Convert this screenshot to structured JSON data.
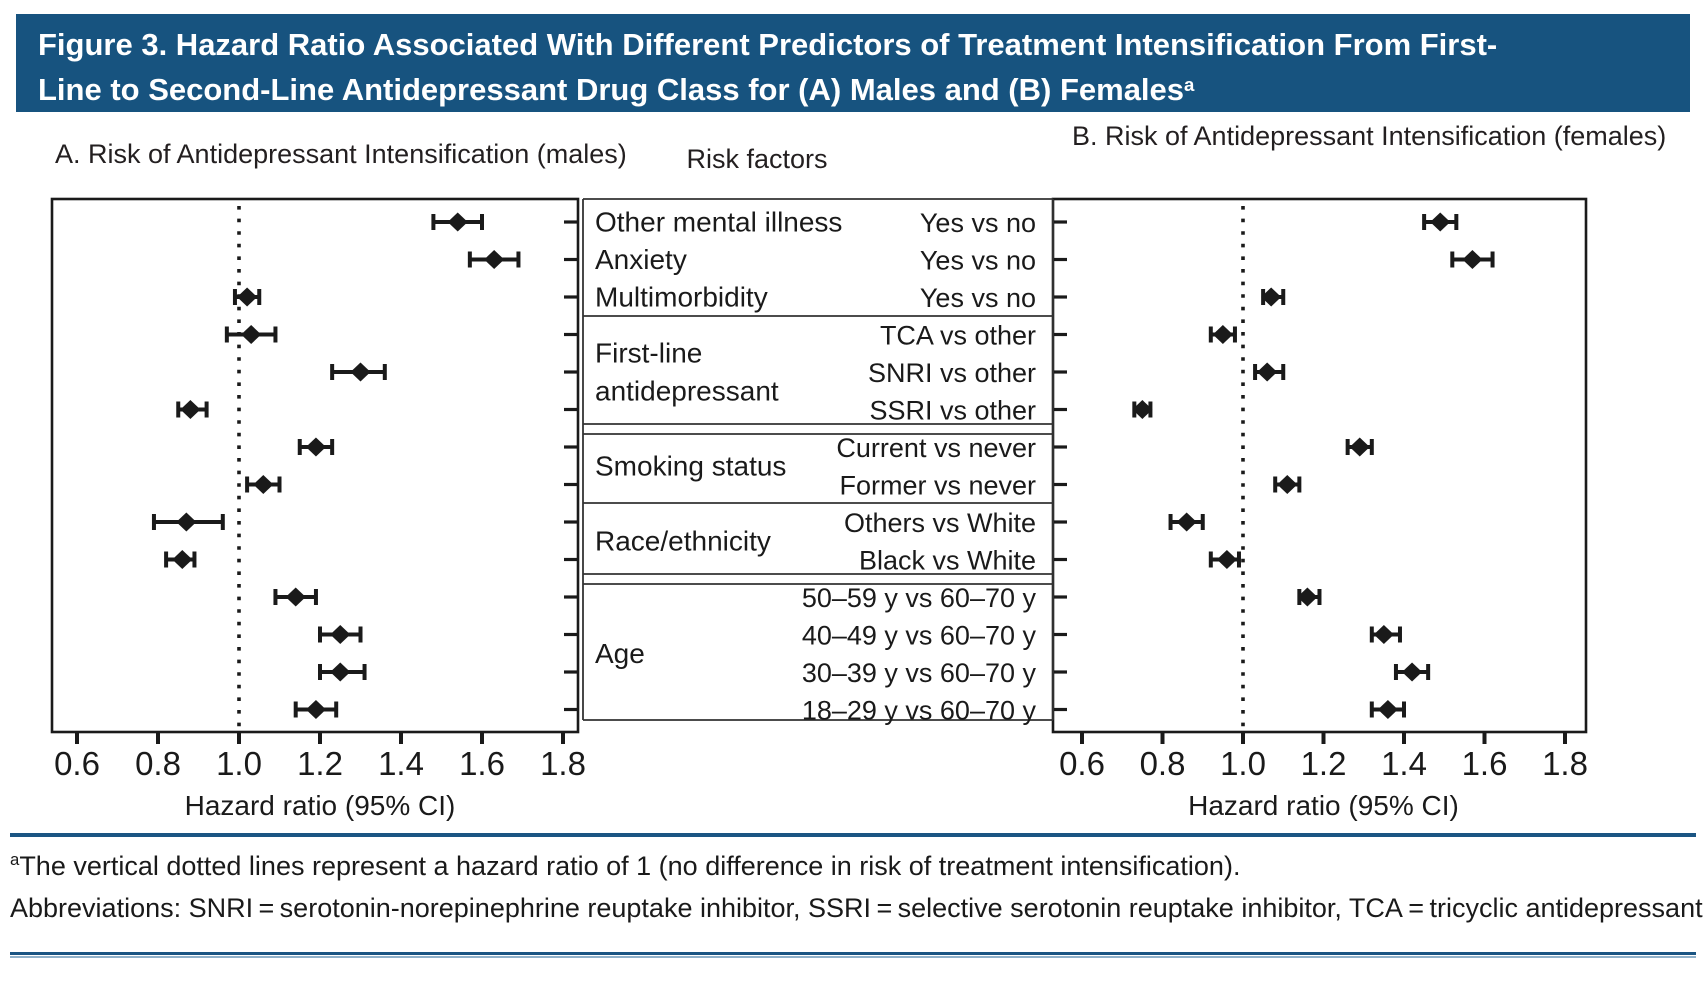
{
  "title": {
    "line1": "Figure 3. Hazard Ratio Associated With Different Predictors of Treatment Intensification From First-",
    "line2": "Line to Second-Line Antidepressant Drug Class for (A) Males and (B) Females",
    "superscript": "a"
  },
  "colors": {
    "title_bar": "#17537F",
    "rule_dark": "#1B5583",
    "rule_light": "#8FB0C9",
    "ink": "#1A1A1A"
  },
  "chart_data": {
    "type": "forest",
    "column_header": "Risk factors",
    "xlabel": "Hazard ratio (95% CI)",
    "x_ticks": [
      "0.6",
      "0.8",
      "1.0",
      "1.2",
      "1.4",
      "1.6",
      "1.8"
    ],
    "xlim": [
      0.54,
      1.84
    ],
    "reference_line": 1.0,
    "reference_note": "vertical dotted line = hazard ratio of 1",
    "panels": [
      {
        "id": "A",
        "title": "A. Risk of Antidepressant Intensification (males)",
        "series_key": "male"
      },
      {
        "id": "B",
        "title": "B. Risk of Antidepressant Intensification (females)",
        "series_key": "female"
      }
    ],
    "groups": [
      {
        "factor": "Other mental illness",
        "rows": [
          {
            "comparison": "Yes vs no",
            "male": {
              "hr": 1.54,
              "lo": 1.48,
              "hi": 1.6
            },
            "female": {
              "hr": 1.49,
              "lo": 1.45,
              "hi": 1.53
            }
          }
        ]
      },
      {
        "factor": "Anxiety",
        "rows": [
          {
            "comparison": "Yes vs no",
            "male": {
              "hr": 1.63,
              "lo": 1.57,
              "hi": 1.69
            },
            "female": {
              "hr": 1.57,
              "lo": 1.52,
              "hi": 1.62
            }
          }
        ]
      },
      {
        "factor": "Multimorbidity",
        "rows": [
          {
            "comparison": "Yes vs no",
            "male": {
              "hr": 1.02,
              "lo": 0.99,
              "hi": 1.05
            },
            "female": {
              "hr": 1.07,
              "lo": 1.05,
              "hi": 1.1
            }
          }
        ]
      },
      {
        "factor": "First-line antidepressant",
        "factor_lines": [
          "First-line",
          "antidepressant"
        ],
        "rows": [
          {
            "comparison": "TCA vs other",
            "male": {
              "hr": 1.03,
              "lo": 0.97,
              "hi": 1.09
            },
            "female": {
              "hr": 0.95,
              "lo": 0.92,
              "hi": 0.98
            }
          },
          {
            "comparison": "SNRI vs other",
            "male": {
              "hr": 1.3,
              "lo": 1.23,
              "hi": 1.36
            },
            "female": {
              "hr": 1.06,
              "lo": 1.03,
              "hi": 1.1
            }
          },
          {
            "comparison": "SSRI vs other",
            "male": {
              "hr": 0.88,
              "lo": 0.85,
              "hi": 0.92
            },
            "female": {
              "hr": 0.75,
              "lo": 0.73,
              "hi": 0.77
            }
          }
        ]
      },
      {
        "factor": "Smoking status",
        "rows": [
          {
            "comparison": "Current vs never",
            "male": {
              "hr": 1.19,
              "lo": 1.15,
              "hi": 1.23
            },
            "female": {
              "hr": 1.29,
              "lo": 1.26,
              "hi": 1.32
            }
          },
          {
            "comparison": "Former vs never",
            "male": {
              "hr": 1.06,
              "lo": 1.02,
              "hi": 1.1
            },
            "female": {
              "hr": 1.11,
              "lo": 1.08,
              "hi": 1.14
            }
          }
        ]
      },
      {
        "factor": "Race/ethnicity",
        "rows": [
          {
            "comparison": "Others vs White",
            "male": {
              "hr": 0.87,
              "lo": 0.79,
              "hi": 0.96
            },
            "female": {
              "hr": 0.86,
              "lo": 0.82,
              "hi": 0.9
            }
          },
          {
            "comparison": "Black vs White",
            "male": {
              "hr": 0.86,
              "lo": 0.82,
              "hi": 0.89
            },
            "female": {
              "hr": 0.96,
              "lo": 0.92,
              "hi": 0.99
            }
          }
        ]
      },
      {
        "factor": "Age",
        "rows": [
          {
            "comparison": "50–59 y vs 60–70 y",
            "male": {
              "hr": 1.14,
              "lo": 1.09,
              "hi": 1.19
            },
            "female": {
              "hr": 1.16,
              "lo": 1.14,
              "hi": 1.19
            }
          },
          {
            "comparison": "40–49 y vs 60–70 y",
            "male": {
              "hr": 1.25,
              "lo": 1.2,
              "hi": 1.3
            },
            "female": {
              "hr": 1.35,
              "lo": 1.32,
              "hi": 1.39
            }
          },
          {
            "comparison": "30–39 y vs 60–70 y",
            "male": {
              "hr": 1.25,
              "lo": 1.2,
              "hi": 1.31
            },
            "female": {
              "hr": 1.42,
              "lo": 1.38,
              "hi": 1.46
            }
          },
          {
            "comparison": "18–29 y vs 60–70 y",
            "male": {
              "hr": 1.19,
              "lo": 1.14,
              "hi": 1.24
            },
            "female": {
              "hr": 1.36,
              "lo": 1.32,
              "hi": 1.4
            }
          }
        ]
      }
    ]
  },
  "footnotes": {
    "note_superscript": "a",
    "note": "The vertical dotted lines represent a hazard ratio of 1 (no difference in risk of treatment intensification).",
    "abbreviations": "Abbreviations: SNRI = serotonin-norepinephrine reuptake inhibitor, SSRI = selective serotonin reuptake inhibitor, TCA = tricyclic antidepressant."
  }
}
